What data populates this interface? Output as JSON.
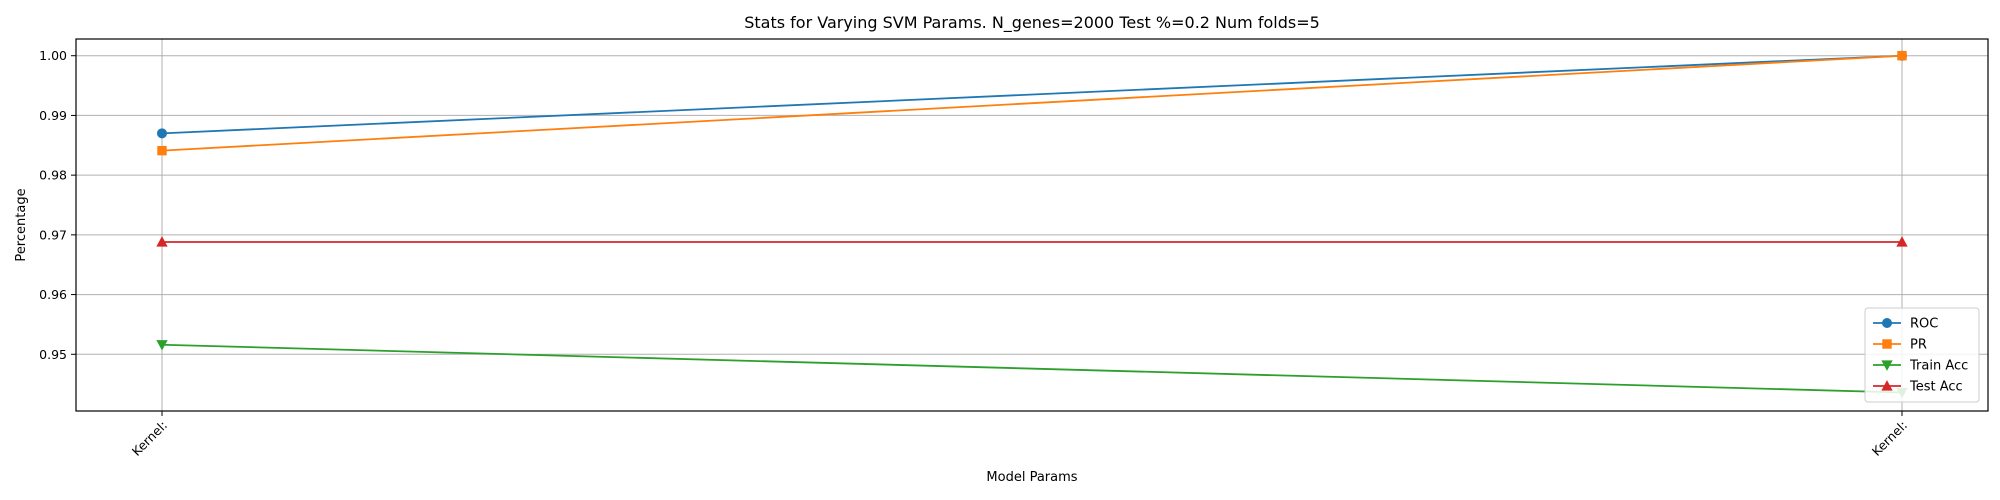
{
  "chart_data": {
    "type": "line",
    "title": "Stats for Varying SVM Params. N_genes=2000 Test %=0.2 Num folds=5",
    "xlabel": "Model Params",
    "ylabel": "Percentage",
    "categories": [
      "Kernel:",
      "Kernel:"
    ],
    "ylim": [
      0.9405,
      1.0028
    ],
    "yticks": [
      0.95,
      0.96,
      0.97,
      0.98,
      0.99,
      1.0
    ],
    "ytick_labels": [
      "0.95",
      "0.96",
      "0.97",
      "0.98",
      "0.99",
      "1.00"
    ],
    "grid": true,
    "legend_position": "lower-right",
    "series": [
      {
        "name": "ROC",
        "values": [
          0.987,
          1.0
        ],
        "color": "#1f77b4",
        "marker": "circle"
      },
      {
        "name": "PR",
        "values": [
          0.9841,
          1.0
        ],
        "color": "#ff7f0e",
        "marker": "square"
      },
      {
        "name": "Train Acc",
        "values": [
          0.9516,
          0.9436
        ],
        "color": "#2ca02c",
        "marker": "triangle-down"
      },
      {
        "name": "Test Acc",
        "values": [
          0.9688,
          0.9688
        ],
        "color": "#d62728",
        "marker": "triangle-up"
      }
    ]
  }
}
